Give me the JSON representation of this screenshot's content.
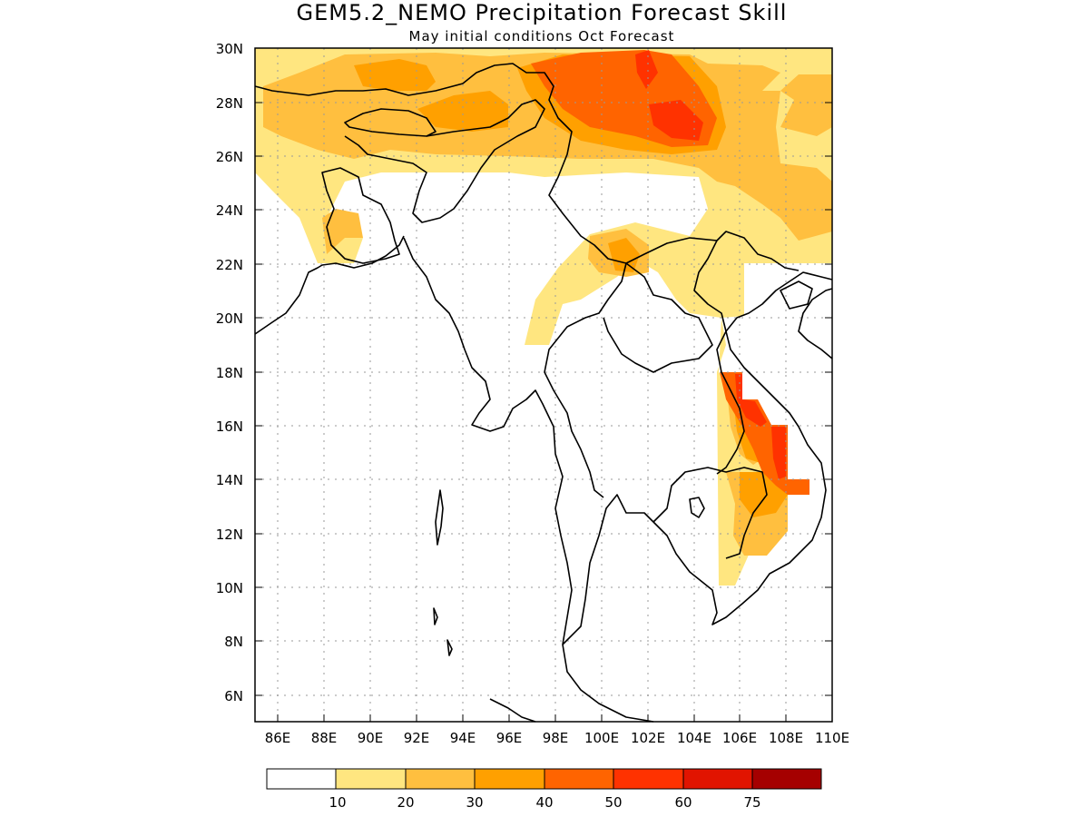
{
  "title": "GEM5.2_NEMO Precipitation Forecast Skill",
  "subtitle": "May initial conditions  Oct Forecast",
  "map": {
    "lon_range": [
      85,
      110
    ],
    "lat_range": [
      5,
      30
    ],
    "lon_ticks": [
      "86E",
      "88E",
      "90E",
      "92E",
      "94E",
      "96E",
      "98E",
      "100E",
      "102E",
      "104E",
      "106E",
      "108E",
      "110E"
    ],
    "lat_ticks": [
      "30N",
      "28N",
      "26N",
      "24N",
      "22N",
      "20N",
      "18N",
      "16N",
      "14N",
      "12N",
      "10N",
      "8N",
      "6N"
    ],
    "grid": "dotted"
  },
  "colorbar": {
    "bounds": [
      "10",
      "20",
      "30",
      "40",
      "50",
      "60",
      "75"
    ],
    "colors": [
      "#ffffff",
      "#ffe680",
      "#ffbf3f",
      "#ffa000",
      "#ff6400",
      "#ff3200",
      "#e11400",
      "#a50000"
    ]
  }
}
